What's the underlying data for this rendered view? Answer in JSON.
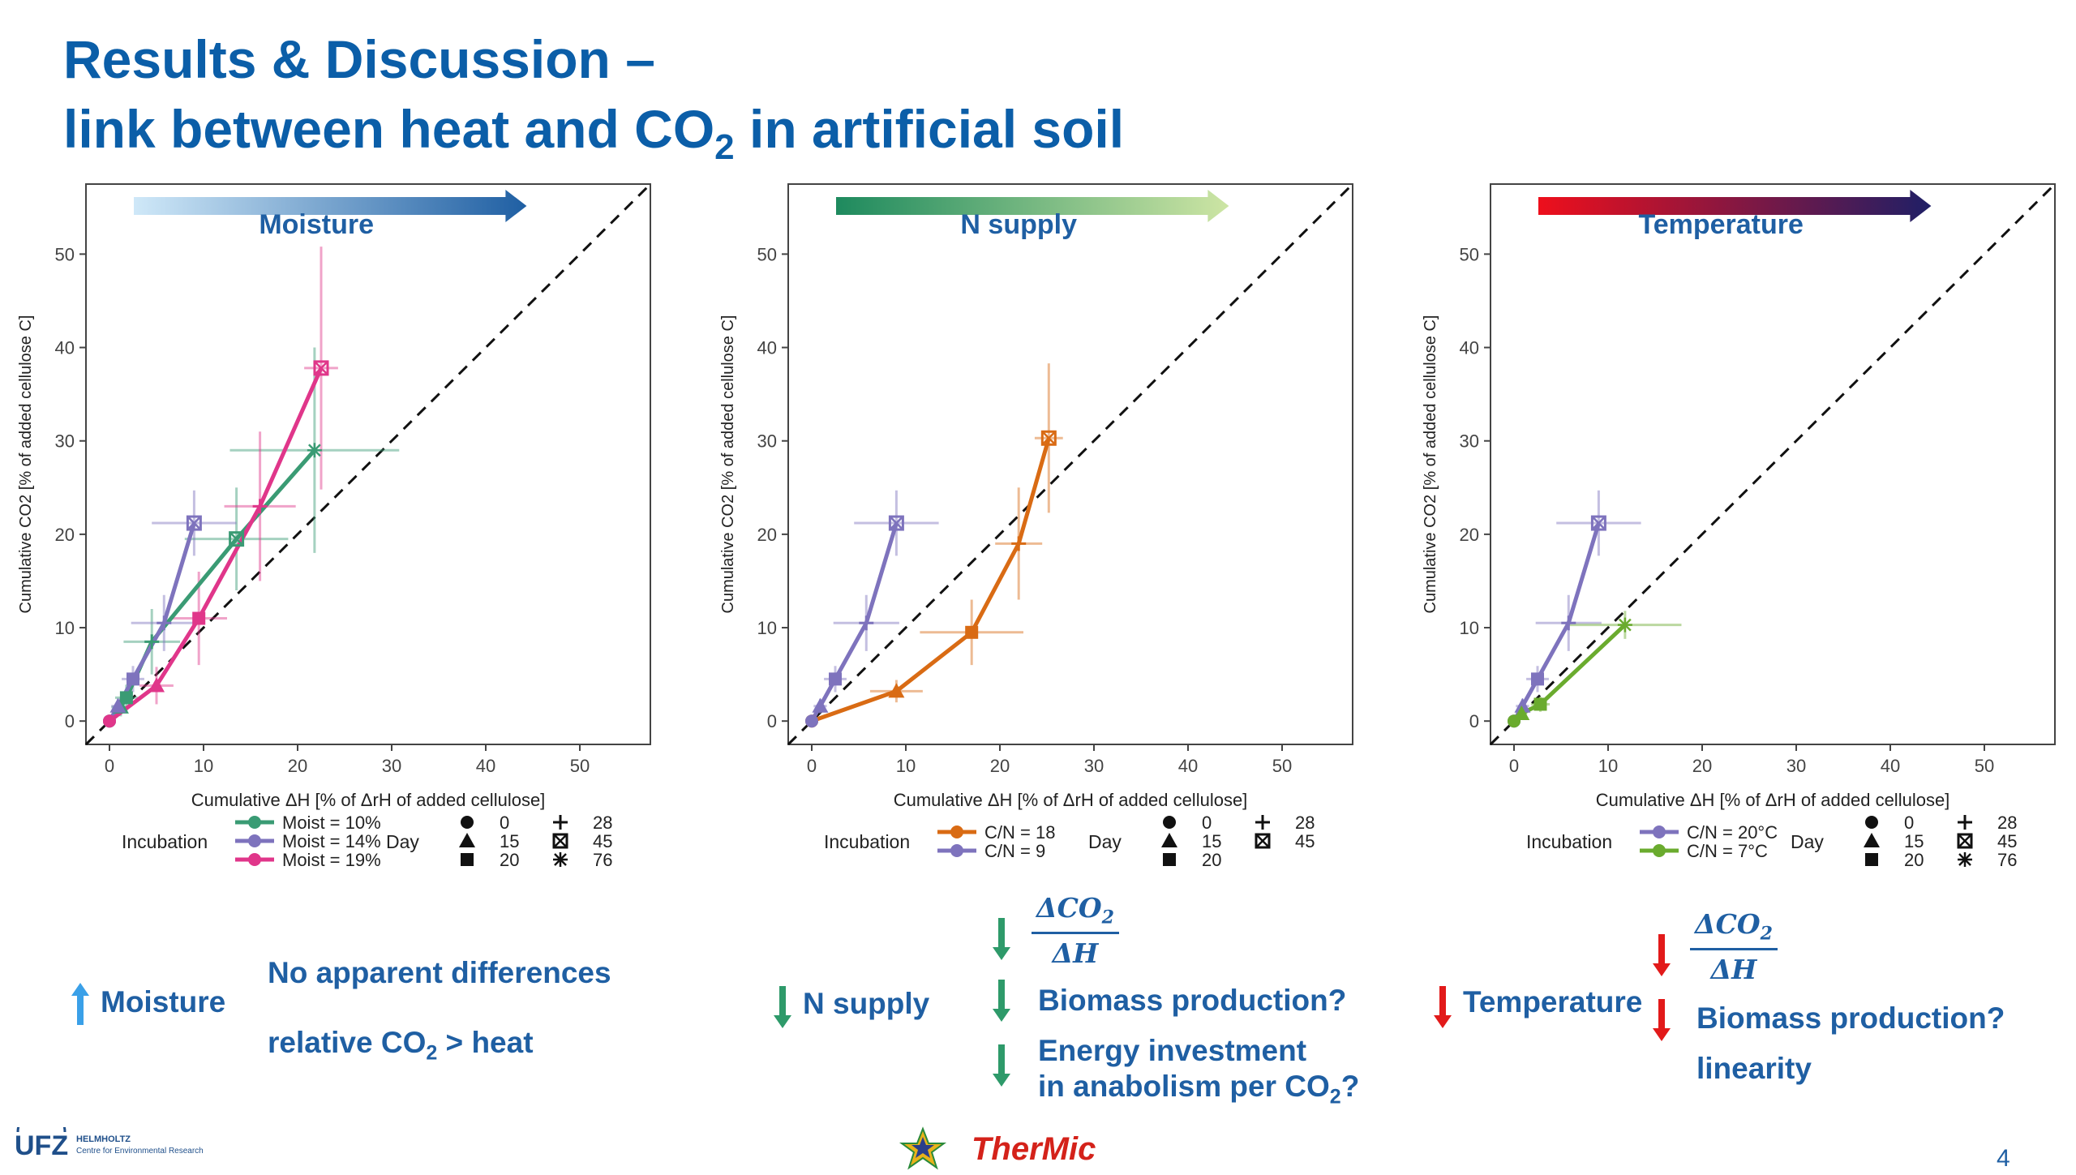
{
  "slide": {
    "title_line1": "Results & Discussion –",
    "title_line2_pre": "link between heat and CO",
    "title_line2_sub": "2",
    "title_line2_post": " in artificial soil",
    "page_number": "4"
  },
  "logos": {
    "ufz": "UFZ",
    "ufz_sub1": "HELMHOLTZ",
    "ufz_sub2": "Centre for Environmental Research",
    "thermic": "TherMic"
  },
  "chart_data": [
    {
      "type": "scatter",
      "panel_label": "Moisture",
      "gradient_colors": [
        "#cfe8f8",
        "#1f5fa3"
      ],
      "xlabel": "Cumulative  ΔH [% of  ΔrH of added cellulose]",
      "ylabel": "Cumulative CO2 [% of added cellulose C]",
      "xlim": [
        -2.5,
        57.5
      ],
      "ylim": [
        -2.5,
        57.5
      ],
      "xticks": [
        0,
        10,
        20,
        30,
        40,
        50
      ],
      "yticks": [
        0,
        10,
        20,
        30,
        40,
        50
      ],
      "reference_line": "1:1 dashed",
      "legend_title": "Incubation",
      "day_legend_title": "Day",
      "days": [
        "0",
        "15",
        "20",
        "28",
        "45",
        "76"
      ],
      "series": [
        {
          "name": "Moist = 10%",
          "color": "#3a9b74",
          "points": [
            {
              "day": "0",
              "x": 0,
              "y": 0,
              "xerr": 0.4,
              "yerr": 0.4
            },
            {
              "day": "15",
              "x": 1.2,
              "y": 1.5,
              "xerr": 1.0,
              "yerr": 1.0
            },
            {
              "day": "20",
              "x": 1.8,
              "y": 2.5,
              "xerr": 1.2,
              "yerr": 1.4
            },
            {
              "day": "28",
              "x": 4.5,
              "y": 8.5,
              "xerr": 3.0,
              "yerr": 3.5
            },
            {
              "day": "45",
              "x": 13.5,
              "y": 19.5,
              "xerr": 5.5,
              "yerr": 5.5
            },
            {
              "day": "76",
              "x": 21.8,
              "y": 29.0,
              "xerr": 9.0,
              "yerr": 11.0
            }
          ]
        },
        {
          "name": "Moist = 14%",
          "color": "#7e73bd",
          "points": [
            {
              "day": "0",
              "x": 0,
              "y": 0,
              "xerr": 0.3,
              "yerr": 0.3
            },
            {
              "day": "15",
              "x": 0.9,
              "y": 1.6,
              "xerr": 0.7,
              "yerr": 0.8
            },
            {
              "day": "20",
              "x": 2.5,
              "y": 4.5,
              "xerr": 1.2,
              "yerr": 1.4
            },
            {
              "day": "28",
              "x": 5.8,
              "y": 10.5,
              "xerr": 3.5,
              "yerr": 3.0
            },
            {
              "day": "45",
              "x": 9.0,
              "y": 21.2,
              "xerr": 4.5,
              "yerr": 3.5
            }
          ]
        },
        {
          "name": "Moist = 19%",
          "color": "#e0368a",
          "points": [
            {
              "day": "0",
              "x": 0,
              "y": 0,
              "xerr": 0.3,
              "yerr": 0.3
            },
            {
              "day": "15",
              "x": 5.0,
              "y": 3.8,
              "xerr": 1.8,
              "yerr": 2.0
            },
            {
              "day": "20",
              "x": 9.5,
              "y": 11.0,
              "xerr": 3.0,
              "yerr": 5.0
            },
            {
              "day": "28",
              "x": 16.0,
              "y": 23.0,
              "xerr": 3.8,
              "yerr": 8.0
            },
            {
              "day": "45",
              "x": 22.5,
              "y": 37.8,
              "xerr": 1.8,
              "yerr": 13.0
            }
          ]
        }
      ]
    },
    {
      "type": "scatter",
      "panel_label": "N supply",
      "gradient_colors": [
        "#1e8a5e",
        "#cde5a4"
      ],
      "xlabel": "Cumulative  ΔH [% of  ΔrH of added cellulose]",
      "ylabel": "Cumulative CO2 [% of added cellulose C]",
      "xlim": [
        -2.5,
        57.5
      ],
      "ylim": [
        -2.5,
        57.5
      ],
      "xticks": [
        0,
        10,
        20,
        30,
        40,
        50
      ],
      "yticks": [
        0,
        10,
        20,
        30,
        40,
        50
      ],
      "reference_line": "1:1 dashed",
      "legend_title": "Incubation",
      "day_legend_title": "Day",
      "days": [
        "0",
        "15",
        "20",
        "28",
        "45"
      ],
      "series": [
        {
          "name": "C/N = 18",
          "color": "#d96b14",
          "points": [
            {
              "day": "0",
              "x": 0,
              "y": 0,
              "xerr": 0.3,
              "yerr": 0.3
            },
            {
              "day": "15",
              "x": 9.0,
              "y": 3.2,
              "xerr": 2.8,
              "yerr": 1.2
            },
            {
              "day": "20",
              "x": 17.0,
              "y": 9.5,
              "xerr": 5.5,
              "yerr": 3.5
            },
            {
              "day": "28",
              "x": 22.0,
              "y": 19.0,
              "xerr": 2.5,
              "yerr": 6.0
            },
            {
              "day": "45",
              "x": 25.2,
              "y": 30.3,
              "xerr": 1.5,
              "yerr": 8.0
            }
          ]
        },
        {
          "name": "C/N = 9",
          "color": "#7e73bd",
          "points": [
            {
              "day": "0",
              "x": 0,
              "y": 0,
              "xerr": 0.3,
              "yerr": 0.3
            },
            {
              "day": "15",
              "x": 0.9,
              "y": 1.6,
              "xerr": 0.7,
              "yerr": 0.8
            },
            {
              "day": "20",
              "x": 2.5,
              "y": 4.5,
              "xerr": 1.2,
              "yerr": 1.4
            },
            {
              "day": "28",
              "x": 5.8,
              "y": 10.5,
              "xerr": 3.5,
              "yerr": 3.0
            },
            {
              "day": "45",
              "x": 9.0,
              "y": 21.2,
              "xerr": 4.5,
              "yerr": 3.5
            }
          ]
        }
      ]
    },
    {
      "type": "scatter",
      "panel_label": "Temperature",
      "gradient_colors": [
        "#ee0f1c",
        "#1f1f66"
      ],
      "xlabel": "Cumulative  ΔH [% of  ΔrH of added cellulose]",
      "ylabel": "Cumulative CO2 [% of added cellulose C]",
      "xlim": [
        -2.5,
        57.5
      ],
      "ylim": [
        -2.5,
        57.5
      ],
      "xticks": [
        0,
        10,
        20,
        30,
        40,
        50
      ],
      "yticks": [
        0,
        10,
        20,
        30,
        40,
        50
      ],
      "reference_line": "1:1 dashed",
      "legend_title": "Incubation",
      "day_legend_title": "Day",
      "days": [
        "0",
        "15",
        "20",
        "28",
        "45",
        "76"
      ],
      "series": [
        {
          "name": "C/N = 20°C",
          "color": "#7e73bd",
          "points": [
            {
              "day": "0",
              "x": 0,
              "y": 0,
              "xerr": 0.3,
              "yerr": 0.3
            },
            {
              "day": "15",
              "x": 0.9,
              "y": 1.6,
              "xerr": 0.7,
              "yerr": 0.8
            },
            {
              "day": "20",
              "x": 2.5,
              "y": 4.5,
              "xerr": 1.2,
              "yerr": 1.4
            },
            {
              "day": "28",
              "x": 5.8,
              "y": 10.5,
              "xerr": 3.5,
              "yerr": 3.0
            },
            {
              "day": "45",
              "x": 9.0,
              "y": 21.2,
              "xerr": 4.5,
              "yerr": 3.5
            }
          ]
        },
        {
          "name": "C/N = 7°C",
          "color": "#6aab2e",
          "points": [
            {
              "day": "0",
              "x": 0,
              "y": 0,
              "xerr": 0.3,
              "yerr": 0.3
            },
            {
              "day": "15",
              "x": 0.8,
              "y": 0.8,
              "xerr": 0.6,
              "yerr": 0.5
            },
            {
              "day": "20",
              "x": 2.8,
              "y": 1.8,
              "xerr": 1.0,
              "yerr": 0.8
            },
            {
              "day": "76",
              "x": 11.8,
              "y": 10.3,
              "xerr": 6.0,
              "yerr": 1.5
            }
          ]
        }
      ]
    }
  ],
  "notes": {
    "moisture": {
      "label": "Moisture",
      "line1": "No apparent differences",
      "line2_pre": "relative CO",
      "line2_sub": "2",
      "line2_post": " > heat"
    },
    "nsupply": {
      "label": "N supply",
      "frac_num": "ΔCO",
      "frac_sub": "2",
      "frac_den": "ΔH",
      "item1": "Biomass production?",
      "item2_line1": "Energy investment",
      "item2_line2_pre": "in anabolism per CO",
      "item2_line2_sub": "2",
      "item2_line2_post": "?"
    },
    "temperature": {
      "label": "Temperature",
      "frac_num": "ΔCO",
      "frac_sub": "2",
      "frac_den": "ΔH",
      "item1": "Biomass production?",
      "item2": "linearity"
    }
  },
  "colors": {
    "title": "#0b5ea8",
    "text": "#1f5fa3",
    "up_arrow": "#3aa0e8",
    "down_green": "#2e9a6a",
    "down_red": "#e21a1a"
  }
}
